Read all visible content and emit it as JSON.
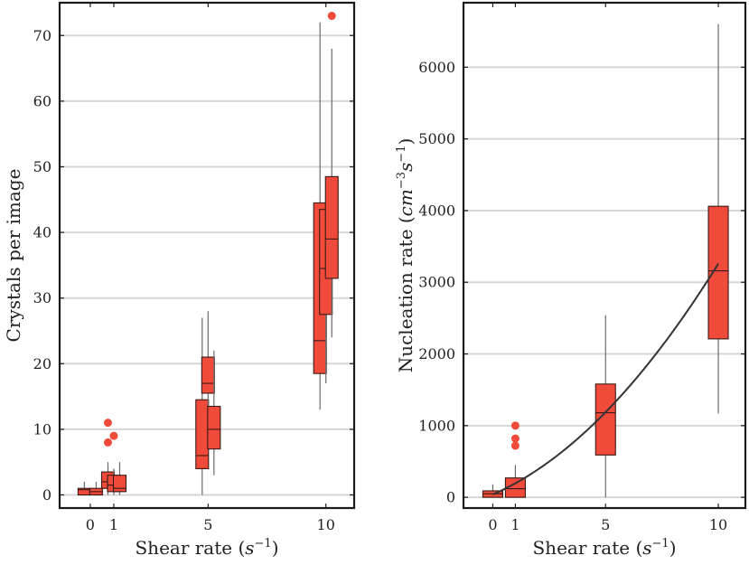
{
  "chart_data": [
    {
      "type": "boxplot",
      "ylabel": "Crystals per image",
      "xlabel": "Shear rate (s",
      "xlabel_sup": "−1",
      "xlabel_end": ")",
      "xticks": [
        0,
        1,
        5,
        10
      ],
      "xlim": [
        -1.3,
        11.2
      ],
      "ylim": [
        -2,
        75
      ],
      "yticks": [
        0,
        10,
        20,
        30,
        40,
        50,
        60,
        70
      ],
      "grid": "horizontal",
      "box_color": "#f04a3a",
      "boxes": [
        {
          "shear": 0,
          "x": -0.25,
          "whislo": 0,
          "q1": 0,
          "med": 0.8,
          "q3": 1,
          "whishi": 2,
          "fliers": []
        },
        {
          "shear": 0,
          "x": 0.25,
          "whislo": 0,
          "q1": 0,
          "med": 0.5,
          "q3": 1,
          "whishi": 2,
          "fliers": []
        },
        {
          "shear": 1,
          "x": 0.75,
          "whislo": 0,
          "q1": 1,
          "med": 2,
          "q3": 3.5,
          "whishi": 5,
          "fliers": [
            8,
            11
          ]
        },
        {
          "shear": 1,
          "x": 1.0,
          "whislo": 0,
          "q1": 0.5,
          "med": 1.5,
          "q3": 3,
          "whishi": 4,
          "fliers": [
            9
          ]
        },
        {
          "shear": 1,
          "x": 1.25,
          "whislo": 0,
          "q1": 0.5,
          "med": 1,
          "q3": 3,
          "whishi": 5,
          "fliers": []
        },
        {
          "shear": 5,
          "x": 4.75,
          "whislo": 0,
          "q1": 4,
          "med": 6,
          "q3": 14.5,
          "whishi": 27,
          "fliers": []
        },
        {
          "shear": 5,
          "x": 5.0,
          "whislo": 10,
          "q1": 15.5,
          "med": 17,
          "q3": 21,
          "whishi": 28,
          "fliers": []
        },
        {
          "shear": 5,
          "x": 5.25,
          "whislo": 3,
          "q1": 7,
          "med": 10,
          "q3": 13.5,
          "whishi": 22,
          "fliers": []
        },
        {
          "shear": 10,
          "x": 9.75,
          "whislo": 13,
          "q1": 18.5,
          "med": 23.5,
          "q3": 44.5,
          "whishi": 72,
          "fliers": []
        },
        {
          "shear": 10,
          "x": 10.0,
          "whislo": 17,
          "q1": 27.5,
          "med": 34.5,
          "q3": 43.5,
          "whishi": 48,
          "fliers": []
        },
        {
          "shear": 10,
          "x": 10.25,
          "whislo": 24,
          "q1": 33,
          "med": 39,
          "q3": 48.5,
          "whishi": 68,
          "fliers": [
            73
          ]
        }
      ]
    },
    {
      "type": "boxplot",
      "ylabel": "Nucleation rate (",
      "ylabel_math": "cm",
      "ylabel_sup1": "−3",
      "ylabel_math2": "s",
      "ylabel_sup2": "−1",
      "ylabel_end": ")",
      "xlabel": "Shear rate (s",
      "xlabel_sup": "−1",
      "xlabel_end": ")",
      "xticks": [
        0,
        1,
        5,
        10
      ],
      "xlim": [
        -1.3,
        11.2
      ],
      "ylim": [
        -150,
        6900
      ],
      "yticks": [
        0,
        1000,
        2000,
        3000,
        4000,
        5000,
        6000
      ],
      "grid": "horizontal",
      "box_color": "#f04a3a",
      "boxes": [
        {
          "shear": 0,
          "x": 0,
          "whislo": 0,
          "q1": 0,
          "med": 50,
          "q3": 90,
          "whishi": 180,
          "fliers": []
        },
        {
          "shear": 1,
          "x": 1,
          "whislo": 0,
          "q1": 0,
          "med": 120,
          "q3": 270,
          "whishi": 450,
          "fliers": [
            720,
            820,
            1000
          ]
        },
        {
          "shear": 5,
          "x": 5,
          "whislo": 0,
          "q1": 590,
          "med": 1180,
          "q3": 1580,
          "whishi": 2540,
          "fliers": []
        },
        {
          "shear": 10,
          "x": 10,
          "whislo": 1170,
          "q1": 2210,
          "med": 3160,
          "q3": 4060,
          "whishi": 6600,
          "fliers": []
        }
      ],
      "fit": {
        "type": "quadratic",
        "formula": "y = 18.5x^2 + 137x + 40",
        "a": 18.5,
        "b": 137,
        "c": 40,
        "x_range": [
          0,
          10
        ],
        "color": "#333333"
      }
    }
  ]
}
